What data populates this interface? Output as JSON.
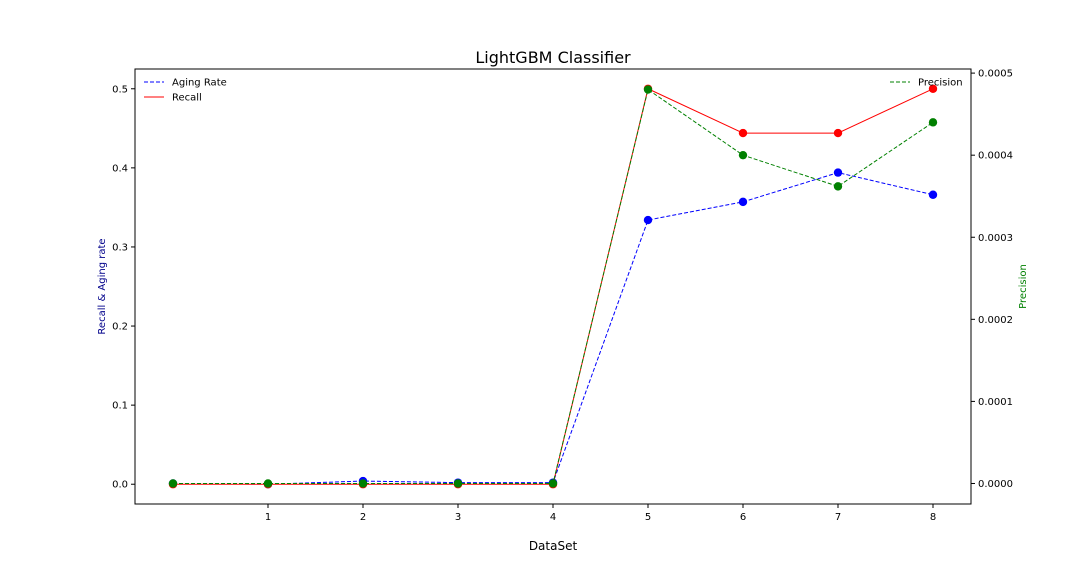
{
  "chart_data": {
    "type": "line",
    "title": "LightGBM Classifier",
    "xlabel": "DataSet",
    "ylabel_left": "Recall & Aging rate",
    "ylabel_right": "Precision",
    "x": [
      0,
      1,
      2,
      3,
      4,
      5,
      6,
      7,
      8
    ],
    "x_tick_labels": [
      "1",
      "2",
      "3",
      "4",
      "5",
      "6",
      "7",
      "8"
    ],
    "x_ticks": [
      1,
      2,
      3,
      4,
      5,
      6,
      7,
      8
    ],
    "xlim": [
      -0.4,
      8.4
    ],
    "ylim_left": [
      -0.025,
      0.525
    ],
    "ylim_right": [
      -2.5e-05,
      0.000505
    ],
    "yticks_left": [
      "0.0",
      "0.1",
      "0.2",
      "0.3",
      "0.4",
      "0.5"
    ],
    "yticks_right": [
      "0.0000",
      "0.0001",
      "0.0002",
      "0.0003",
      "0.0004",
      "0.0005"
    ],
    "series": [
      {
        "name": "Aging Rate",
        "axis": "left",
        "values": [
          0.001,
          0.0,
          0.004,
          0.002,
          0.002,
          0.334,
          0.357,
          0.394,
          0.366
        ],
        "line_color": "#0000ff",
        "marker_color": "#0000ff",
        "line_style": "dashed"
      },
      {
        "name": "Recall",
        "axis": "left",
        "values": [
          0.0,
          0.0,
          0.0,
          0.0,
          0.0,
          0.5,
          0.444,
          0.444,
          0.5
        ],
        "line_color": "#ff0000",
        "marker_color": "#ff0000",
        "line_style": "solid"
      },
      {
        "name": "Precision",
        "axis": "right",
        "values": [
          0.0,
          0.0,
          0.0,
          0.0,
          0.0,
          0.00048,
          0.0004,
          0.000362,
          0.00044
        ],
        "line_color": "#008000",
        "marker_color": "#008000",
        "line_style": "dashed"
      }
    ],
    "legend_left_placement": "upper-left",
    "legend_right_placement": "upper-right",
    "grid": false,
    "colors": {
      "left_label": "#00008b",
      "right_label": "#008000"
    }
  }
}
